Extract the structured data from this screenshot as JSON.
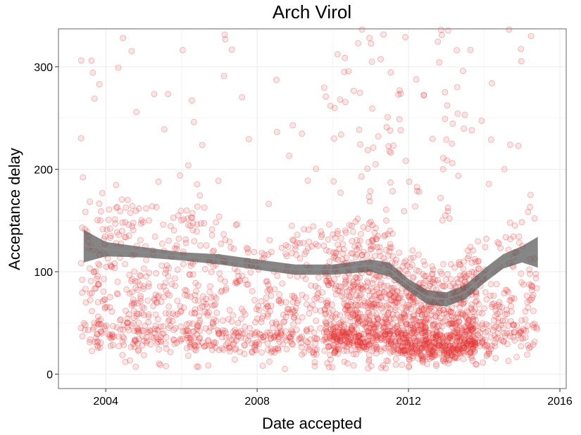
{
  "chart_data": {
    "type": "scatter",
    "title": "Arch Virol",
    "xlabel": "Date accepted",
    "ylabel": "Acceptance delay",
    "x_type": "date",
    "xlim": [
      "2002-10-01",
      "2016-03-01"
    ],
    "ylim": [
      -14,
      337
    ],
    "x_ticks": [
      "2004",
      "2008",
      "2012",
      "2016"
    ],
    "y_ticks": [
      "0",
      "100",
      "200",
      "300"
    ],
    "grid": true,
    "legend": "none",
    "point_color": "#ef3636",
    "point_alpha": 0.13,
    "n_points_approx": 2600,
    "x_range_of_points": [
      "2003-05",
      "2015-06"
    ],
    "smooth": {
      "method": "loess",
      "x": [
        "2003-06",
        "2004-01",
        "2005-01",
        "2006-01",
        "2007-01",
        "2008-01",
        "2009-01",
        "2010-01",
        "2011-01",
        "2011-07",
        "2012-01",
        "2012-07",
        "2013-01",
        "2013-07",
        "2014-01",
        "2014-07",
        "2015-01",
        "2015-06"
      ],
      "y": [
        125,
        122,
        119,
        115,
        112,
        107,
        102,
        102,
        106,
        102,
        87,
        75,
        73,
        80,
        96,
        110,
        117,
        119
      ],
      "se_lower": [
        109,
        115,
        114,
        111,
        107,
        102,
        97,
        97,
        100,
        95,
        81,
        68,
        66,
        73,
        89,
        103,
        109,
        104
      ],
      "se_upper": [
        141,
        129,
        124,
        119,
        117,
        112,
        107,
        107,
        112,
        109,
        93,
        82,
        80,
        87,
        103,
        117,
        125,
        134
      ],
      "band_color": "#5c5c5c"
    }
  }
}
